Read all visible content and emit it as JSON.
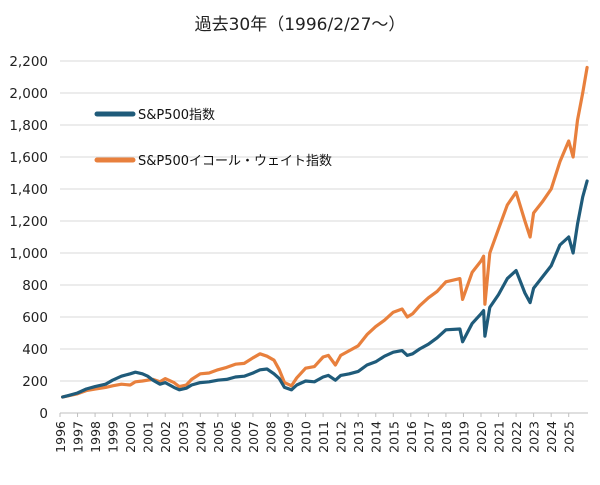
{
  "chart_data": {
    "type": "line",
    "title": "過去30年（1996/2/27～）",
    "xlabel": "",
    "ylabel": "",
    "grid": true,
    "legend_position": "top-left",
    "x_domain": [
      1996.0,
      2026.1
    ],
    "ylim": [
      0,
      2200
    ],
    "y_ticks": [
      0,
      200,
      400,
      600,
      800,
      1000,
      1200,
      1400,
      1600,
      1800,
      2000,
      2200
    ],
    "y_tick_labels": [
      "0",
      "200",
      "400",
      "600",
      "800",
      "1,000",
      "1,200",
      "1,400",
      "1,600",
      "1,800",
      "2,000",
      "2,200"
    ],
    "x_ticks": [
      "1996",
      "1997",
      "1998",
      "1999",
      "2000",
      "2001",
      "2002",
      "2003",
      "2004",
      "2005",
      "2006",
      "2007",
      "2008",
      "2009",
      "2010",
      "2011",
      "2012",
      "2013",
      "2014",
      "2015",
      "2016",
      "2017",
      "2018",
      "2019",
      "2020",
      "2021",
      "2022",
      "2023",
      "2024",
      "2025"
    ],
    "series": [
      {
        "name": "S&P500指数",
        "color": "#1f5b7a",
        "x": [
          1996.15,
          1996.5,
          1997.0,
          1997.5,
          1998.0,
          1998.6,
          1999.0,
          1999.5,
          2000.0,
          2000.3,
          2000.7,
          2001.0,
          2001.3,
          2001.7,
          2002.0,
          2002.5,
          2002.8,
          2003.2,
          2003.5,
          2004.0,
          2004.5,
          2005.0,
          2005.5,
          2006.0,
          2006.5,
          2007.0,
          2007.4,
          2007.8,
          2008.2,
          2008.5,
          2008.8,
          2009.2,
          2009.5,
          2010.0,
          2010.5,
          2011.0,
          2011.3,
          2011.7,
          2012.0,
          2012.5,
          2013.0,
          2013.5,
          2014.0,
          2014.5,
          2015.0,
          2015.5,
          2015.8,
          2016.1,
          2016.5,
          2017.0,
          2017.5,
          2018.0,
          2018.8,
          2018.95,
          2019.5,
          2020.0,
          2020.15,
          2020.22,
          2020.5,
          2021.0,
          2021.5,
          2022.0,
          2022.5,
          2022.8,
          2023.0,
          2023.5,
          2024.0,
          2024.5,
          2025.0,
          2025.25,
          2025.5,
          2025.8,
          2026.05
        ],
        "values": [
          100,
          110,
          125,
          150,
          165,
          180,
          205,
          230,
          245,
          255,
          245,
          230,
          205,
          180,
          190,
          160,
          145,
          155,
          175,
          190,
          195,
          205,
          210,
          225,
          230,
          250,
          270,
          275,
          245,
          215,
          160,
          145,
          175,
          200,
          195,
          225,
          235,
          205,
          235,
          245,
          260,
          300,
          320,
          355,
          380,
          390,
          360,
          370,
          400,
          430,
          470,
          520,
          525,
          445,
          560,
          620,
          640,
          480,
          660,
          740,
          840,
          890,
          750,
          690,
          780,
          850,
          920,
          1050,
          1100,
          1000,
          1180,
          1350,
          1450
        ]
      },
      {
        "name": "S&P500イコール・ウェイト指数",
        "color": "#e8803d",
        "x": [
          1996.15,
          1996.5,
          1997.0,
          1997.5,
          1998.0,
          1998.6,
          1999.0,
          1999.5,
          2000.0,
          2000.3,
          2000.7,
          2001.0,
          2001.3,
          2001.7,
          2002.0,
          2002.5,
          2002.8,
          2003.2,
          2003.5,
          2004.0,
          2004.5,
          2005.0,
          2005.5,
          2006.0,
          2006.5,
          2007.0,
          2007.4,
          2007.8,
          2008.2,
          2008.5,
          2008.8,
          2009.2,
          2009.5,
          2010.0,
          2010.5,
          2011.0,
          2011.3,
          2011.7,
          2012.0,
          2012.5,
          2013.0,
          2013.5,
          2014.0,
          2014.5,
          2015.0,
          2015.5,
          2015.8,
          2016.1,
          2016.5,
          2017.0,
          2017.5,
          2018.0,
          2018.8,
          2018.95,
          2019.5,
          2020.0,
          2020.15,
          2020.22,
          2020.5,
          2021.0,
          2021.5,
          2022.0,
          2022.5,
          2022.8,
          2023.0,
          2023.5,
          2024.0,
          2024.5,
          2025.0,
          2025.25,
          2025.5,
          2025.8,
          2026.05
        ],
        "values": [
          100,
          108,
          120,
          140,
          150,
          160,
          170,
          180,
          175,
          195,
          200,
          205,
          210,
          195,
          215,
          190,
          165,
          175,
          210,
          245,
          250,
          270,
          285,
          305,
          310,
          345,
          370,
          355,
          330,
          270,
          190,
          170,
          220,
          280,
          290,
          350,
          360,
          300,
          360,
          390,
          420,
          490,
          540,
          580,
          630,
          650,
          600,
          620,
          670,
          720,
          760,
          820,
          840,
          710,
          880,
          950,
          980,
          680,
          1000,
          1150,
          1300,
          1380,
          1200,
          1100,
          1250,
          1320,
          1400,
          1570,
          1700,
          1600,
          1830,
          2000,
          2160
        ]
      }
    ]
  }
}
